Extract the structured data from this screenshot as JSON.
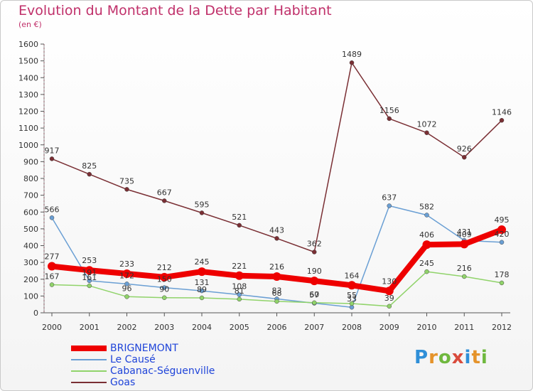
{
  "title": "Evolution du Montant de la Dette par Habitant",
  "subtitle": "(en €)",
  "logo": "Proxiti",
  "colors": {
    "title": "#c0306a",
    "legend_text": "#1f44d9"
  },
  "chart_data": {
    "type": "line",
    "x": [
      "2000",
      "2001",
      "2002",
      "2003",
      "2004",
      "2005",
      "2006",
      "2007",
      "2008",
      "2009",
      "2010",
      "2011",
      "2012"
    ],
    "ylim": [
      0,
      1600
    ],
    "yticks": [
      0,
      100,
      200,
      300,
      400,
      500,
      600,
      700,
      800,
      900,
      1000,
      1100,
      1200,
      1300,
      1400,
      1500,
      1600
    ],
    "grid": false,
    "legend_position": "bottom-left",
    "series": [
      {
        "name": "BRIGNEMONT",
        "color": "#ee0000",
        "values": [
          277,
          253,
          233,
          212,
          245,
          221,
          216,
          190,
          164,
          130,
          406,
          409,
          495
        ],
        "labels": [
          "277",
          "253",
          "233",
          "212",
          "245",
          "221",
          "216",
          "190",
          "164",
          "130",
          "406",
          "409",
          "495"
        ]
      },
      {
        "name": "Le Causé",
        "color": "#6a9fd4",
        "values": [
          566,
          191,
          172,
          150,
          131,
          108,
          83,
          57,
          33,
          637,
          582,
          431,
          420
        ],
        "labels": [
          "566",
          "191",
          "172",
          "150",
          "131",
          "108",
          "83",
          "57",
          "33",
          "637",
          "582",
          "431",
          "420"
        ]
      },
      {
        "name": "Cabanac-Séguenville",
        "color": "#90d36a",
        "values": [
          167,
          161,
          96,
          90,
          89,
          81,
          68,
          60,
          55,
          39,
          245,
          216,
          178
        ],
        "labels": [
          "167",
          "161",
          "96",
          "90",
          "89",
          "81",
          "68",
          "60",
          "55",
          "39",
          "245",
          "216",
          "178"
        ]
      },
      {
        "name": "Goas",
        "color": "#7a2f34",
        "values": [
          917,
          825,
          735,
          667,
          595,
          521,
          443,
          362,
          1489,
          1156,
          1072,
          926,
          1146
        ],
        "labels": [
          "917",
          "825",
          "735",
          "667",
          "595",
          "521",
          "443",
          "362",
          "1489",
          "1156",
          "1072",
          "926",
          "1146"
        ]
      }
    ]
  }
}
